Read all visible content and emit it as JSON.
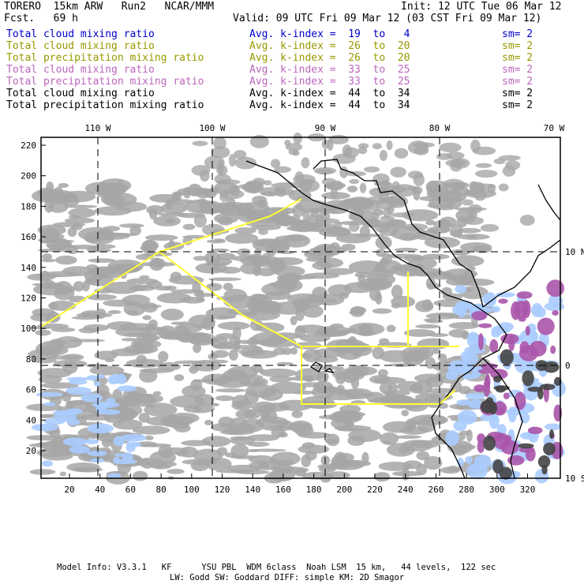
{
  "header": {
    "model": "TORERO  15km ARW   Run2   NCAR/MMM",
    "fcst": "Fcst.   69 h",
    "init": "Init: 12 UTC Tue 06 Mar 12",
    "valid": "Valid: 09 UTC Fri 09 Mar 12 (03 CST Fri 09 Mar 12)"
  },
  "legend": [
    {
      "field": "Total cloud mixing ratio",
      "kindex": "Avg. k-index =  19  to   4",
      "sm": "sm= 2",
      "color": "#0000cc"
    },
    {
      "field": "Total cloud mixing ratio",
      "kindex": "Avg. k-index =  26  to  20",
      "sm": "sm= 2",
      "color": "#999900"
    },
    {
      "field": "Total precipitation mixing ratio",
      "kindex": "Avg. k-index =  26  to  20",
      "sm": "sm= 2",
      "color": "#999900"
    },
    {
      "field": "Total cloud mixing ratio",
      "kindex": "Avg. k-index =  33  to  25",
      "sm": "sm= 2",
      "color": "#bb66bb"
    },
    {
      "field": "Total precipitation mixing ratio",
      "kindex": "Avg. k-index =  33  to  25",
      "sm": "sm= 2",
      "color": "#bb66bb"
    },
    {
      "field": "Total cloud mixing ratio",
      "kindex": "Avg. k-index =  44  to  34",
      "sm": "sm= 2",
      "color": "#000000"
    },
    {
      "field": "Total precipitation mixing ratio",
      "kindex": "Avg. k-index =  44  to  34",
      "sm": "sm= 2",
      "color": "#000000"
    }
  ],
  "map": {
    "x_ticks": [
      "20",
      "40",
      "60",
      "80",
      "100",
      "120",
      "140",
      "160",
      "180",
      "200",
      "220",
      "240",
      "260",
      "280",
      "300",
      "320"
    ],
    "y_ticks": [
      "20",
      "40",
      "60",
      "80",
      "100",
      "120",
      "140",
      "160",
      "180",
      "200",
      "220"
    ],
    "lon_labels": [
      "110 W",
      "100 W",
      "90 W",
      "80 W",
      "70 W"
    ],
    "lat_labels": [
      "10 N",
      "0",
      "10 S"
    ],
    "colors": {
      "frame": "#000000",
      "cloud": "#a6a6a6",
      "flight": "#ffff33",
      "moist": "#aaccff",
      "pink": "#aa55aa",
      "dark": "#444444"
    }
  },
  "footer": {
    "line1": "Model Info: V3.3.1   KF      YSU PBL  WDM 6class  Noah LSM  15 km,   44 levels,  122 sec",
    "line2": "LW: Godd SW: Goddard DIFF: simple KM: 2D Smagor"
  }
}
